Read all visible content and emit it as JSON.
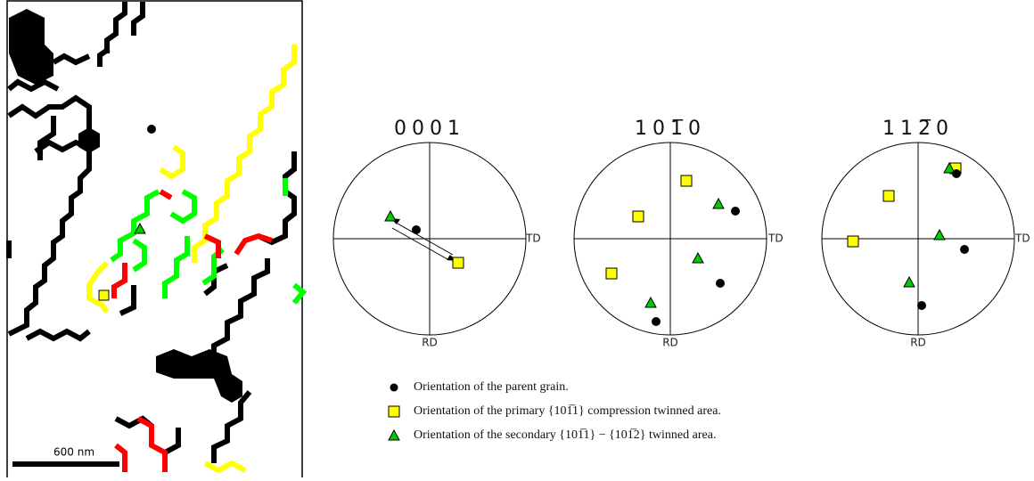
{
  "map": {
    "scale_bar": "600 nm"
  },
  "pole_figures": [
    {
      "title": "0001",
      "td": "TD",
      "rd": "RD"
    },
    {
      "title": "101̅0",
      "td": "TD",
      "rd": "RD"
    },
    {
      "title": "112̅0",
      "td": "TD",
      "rd": "RD"
    }
  ],
  "legend": [
    "Orientation of the parent grain.",
    "Orientation of the primary {101̅1} compression twinned area.",
    "Orientation of the secondary {101̅1} − {101̅2} twinned area."
  ]
}
